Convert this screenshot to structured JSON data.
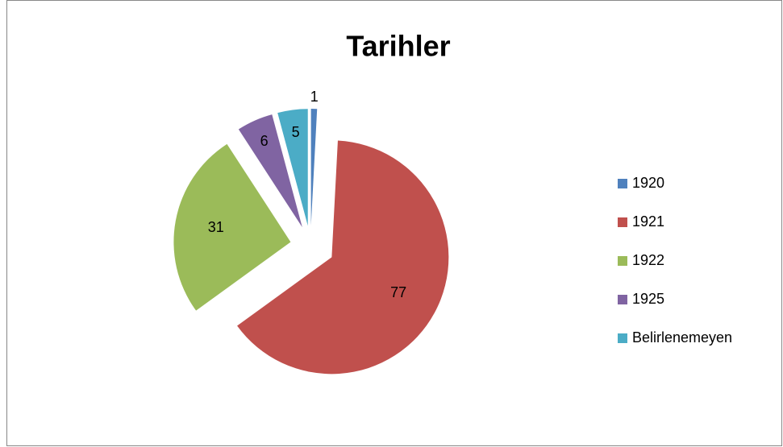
{
  "chart_data": {
    "type": "pie",
    "title": "Tarihler",
    "categories": [
      "1920",
      "1921",
      "1922",
      "1925",
      "Belirlenemeyen"
    ],
    "values": [
      1,
      77,
      31,
      6,
      5
    ],
    "colors": [
      "#4f81bd",
      "#c0504d",
      "#9bbb59",
      "#8064a2",
      "#4bacc6"
    ],
    "legend": "right"
  }
}
